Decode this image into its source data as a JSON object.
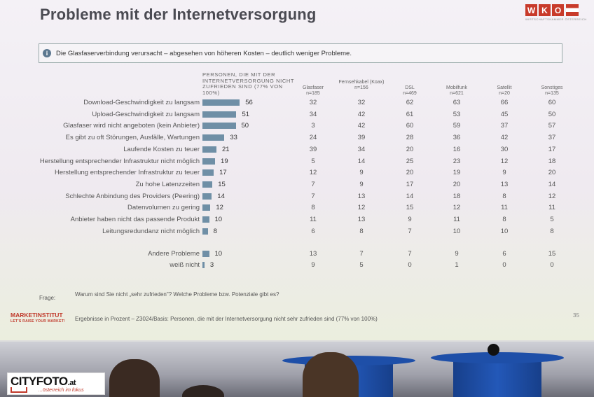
{
  "slide": {
    "title": "Probleme mit der Internetversorgung",
    "logo": {
      "letters": [
        "W",
        "K",
        "O"
      ],
      "subtitle": "WIRTSCHAFTSKAMMER ÖSTERREICH"
    },
    "info_icon": "info-icon",
    "info_text": "Die Glasfaserverbindung verursacht – abgesehen von höheren Kosten – deutlich weniger Probleme.",
    "base_header": "Personen, die mit der Internetversorgung nicht zufrieden sind (77% von 100%)",
    "columns": [
      {
        "name": "Glasfaser",
        "n": "n=185"
      },
      {
        "name": "Fernsehkabel (Koax)",
        "n": "n=156"
      },
      {
        "name": "DSL",
        "n": "n=469"
      },
      {
        "name": "Mobilfunk",
        "n": "n=621"
      },
      {
        "name": "Satellit",
        "n": "n=20"
      },
      {
        "name": "Sonstiges",
        "n": "n=135"
      }
    ],
    "rows": [
      {
        "label": "Download-Geschwindigkeit zu langsam",
        "total": 56,
        "values": [
          32,
          32,
          62,
          63,
          66,
          60
        ]
      },
      {
        "label": "Upload-Geschwindigkeit zu langsam",
        "total": 51,
        "values": [
          34,
          42,
          61,
          53,
          45,
          50
        ]
      },
      {
        "label": "Glasfaser wird nicht angeboten (kein Anbieter)",
        "total": 50,
        "values": [
          3,
          42,
          60,
          59,
          37,
          57
        ]
      },
      {
        "label": "Es gibt zu oft Störungen, Ausfälle, Wartungen",
        "total": 33,
        "values": [
          24,
          39,
          28,
          36,
          42,
          37
        ]
      },
      {
        "label": "Laufende Kosten zu teuer",
        "total": 21,
        "values": [
          39,
          34,
          20,
          16,
          30,
          17
        ]
      },
      {
        "label": "Herstellung entsprechender Infrastruktur nicht möglich",
        "total": 19,
        "values": [
          5,
          14,
          25,
          23,
          12,
          18
        ]
      },
      {
        "label": "Herstellung entsprechender Infrastruktur zu teuer",
        "total": 17,
        "values": [
          12,
          9,
          20,
          19,
          9,
          20
        ]
      },
      {
        "label": "Zu hohe Latenzzeiten",
        "total": 15,
        "values": [
          7,
          9,
          17,
          20,
          13,
          14
        ]
      },
      {
        "label": "Schlechte Anbindung des Providers (Peering)",
        "total": 14,
        "values": [
          7,
          13,
          14,
          18,
          8,
          12
        ]
      },
      {
        "label": "Datenvolumen zu gering",
        "total": 12,
        "values": [
          8,
          12,
          15,
          12,
          11,
          11
        ]
      },
      {
        "label": "Anbieter haben nicht das passende Produkt",
        "total": 10,
        "values": [
          11,
          13,
          9,
          11,
          8,
          5
        ]
      },
      {
        "label": "Leitungsredundanz nicht möglich",
        "total": 8,
        "values": [
          6,
          8,
          7,
          10,
          10,
          8
        ]
      }
    ],
    "extra_rows": [
      {
        "label": "Andere Probleme",
        "total": 10,
        "values": [
          13,
          7,
          7,
          9,
          6,
          15
        ]
      },
      {
        "label": "weiß nicht",
        "total": 3,
        "values": [
          9,
          5,
          0,
          1,
          0,
          0
        ]
      }
    ],
    "frage_label": "Frage:",
    "frage_text": "Warum sind Sie nicht „sehr zufrieden\"? Welche Probleme bzw. Potenziale gibt es?",
    "marketinstitut": "MARKETINSTITUT",
    "marketinstitut_tag": "LET'S RAISE YOUR MARKET!",
    "footer": "Ergebnisse in Prozent – Z3024/Basis: Personen, die mit der Internetversorgung nicht sehr zufrieden sind (77% von 100%)",
    "page_number": "35",
    "bar_color": "#6f8fa6",
    "accent_color": "#c0392b"
  },
  "watermark": {
    "main": "CITYFOTO",
    "suffix": ".at",
    "tagline": "...österreich im fokus"
  }
}
